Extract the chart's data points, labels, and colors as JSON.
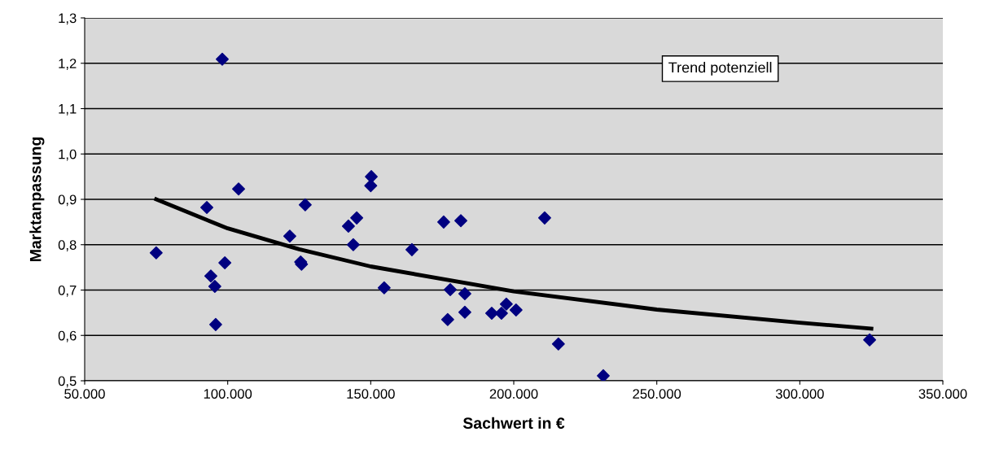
{
  "chart_data": {
    "type": "scatter",
    "xlabel": "Sachwert in €",
    "ylabel": "Marktanpassung",
    "grid": "y",
    "legend": false,
    "xlim": [
      50000,
      350000
    ],
    "xticks": [
      {
        "value": 50000,
        "label": "50.000"
      },
      {
        "value": 100000,
        "label": "100.000"
      },
      {
        "value": 150000,
        "label": "150.000"
      },
      {
        "value": 200000,
        "label": "200.000"
      },
      {
        "value": 250000,
        "label": "250.000"
      },
      {
        "value": 300000,
        "label": "300.000"
      },
      {
        "value": 350000,
        "label": "350.000"
      }
    ],
    "ylim": [
      0.5,
      1.3
    ],
    "yticks": [
      {
        "value": 0.5,
        "label": "0,5"
      },
      {
        "value": 0.6,
        "label": "0,6"
      },
      {
        "value": 0.7,
        "label": "0,7"
      },
      {
        "value": 0.8,
        "label": "0,8"
      },
      {
        "value": 0.9,
        "label": "0,9"
      },
      {
        "value": 1.0,
        "label": "1,0"
      },
      {
        "value": 1.1,
        "label": "1,1"
      },
      {
        "value": 1.2,
        "label": "1,2"
      },
      {
        "value": 1.3,
        "label": "1,3"
      }
    ],
    "annotations": [
      "Trend potenziell"
    ],
    "series": [
      {
        "marker": "diamond",
        "color": "#000080",
        "x": [
          75000,
          92700,
          94100,
          95500,
          95800,
          98100,
          99000,
          103800,
          121700,
          125500,
          125800,
          127100,
          142200,
          143900,
          145100,
          150000,
          150200,
          154700,
          164400,
          175500,
          176900,
          177800,
          181500,
          182900,
          182900,
          192300,
          195700,
          197400,
          200800,
          210800,
          215600,
          231300,
          324400
        ],
        "values": [
          0.782,
          0.882,
          0.731,
          0.708,
          0.624,
          1.209,
          0.76,
          0.923,
          0.819,
          0.762,
          0.757,
          0.888,
          0.841,
          0.8,
          0.859,
          0.93,
          0.95,
          0.705,
          0.789,
          0.85,
          0.635,
          0.701,
          0.853,
          0.692,
          0.651,
          0.649,
          0.649,
          0.669,
          0.656,
          0.859,
          0.581,
          0.511,
          0.59
        ]
      },
      {
        "type": "line",
        "color": "#000000",
        "x": [
          75000,
          100000,
          125000,
          150000,
          200000,
          250000,
          300000,
          325000
        ],
        "values": [
          0.9,
          0.836,
          0.79,
          0.752,
          0.697,
          0.657,
          0.628,
          0.615
        ]
      }
    ]
  }
}
